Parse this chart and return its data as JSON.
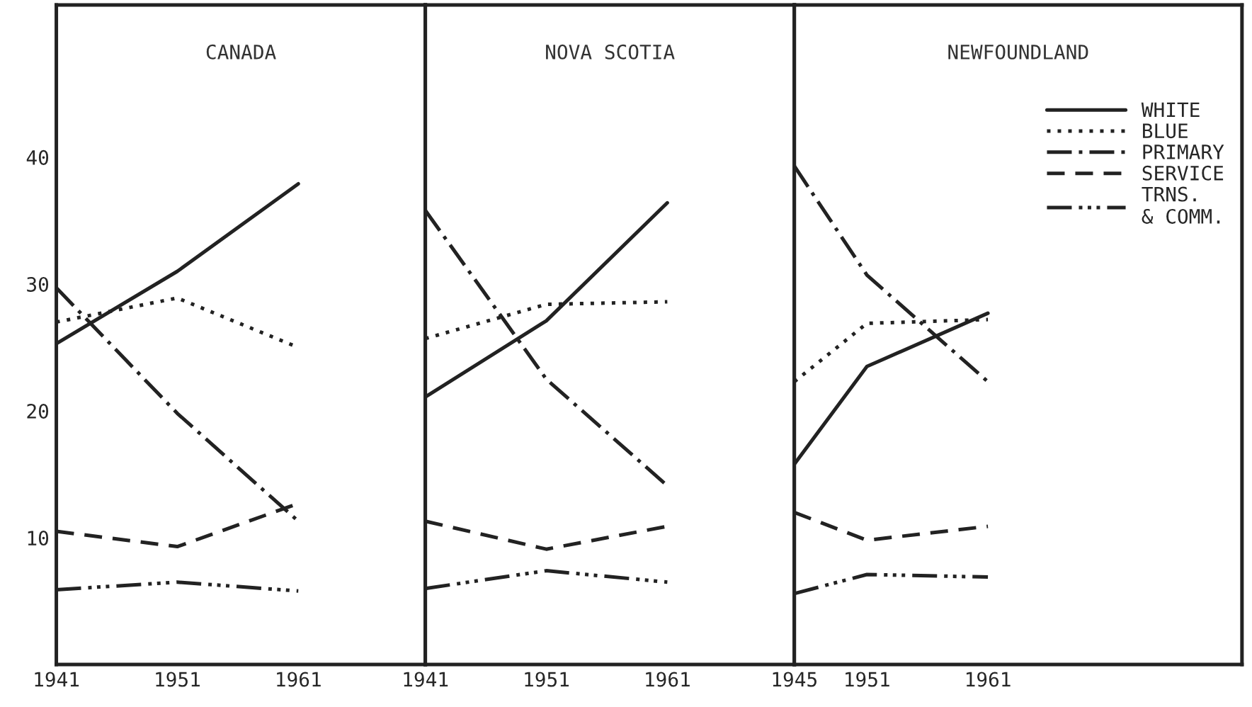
{
  "chart_data": [
    {
      "type": "line",
      "title": "CANADA",
      "x": [
        1941,
        1951,
        1961
      ],
      "xlim": [
        1941,
        1971.5
      ],
      "xticks": [
        1941,
        1951,
        1961
      ],
      "ylim": [
        0,
        52
      ],
      "yticks": [
        10,
        20,
        30,
        40
      ],
      "grid": false,
      "legend": false,
      "series": [
        {
          "color": "#222222",
          "line_style": "solid",
          "values": [
            25.3,
            31,
            37.9
          ]
        },
        {
          "color": "#222222",
          "line_style": "dotted",
          "values": [
            27.0,
            28.9,
            25.0
          ]
        },
        {
          "color": "#222222",
          "line_style": "dashdot",
          "values": [
            29.7,
            19.8,
            11.3
          ]
        },
        {
          "color": "#222222",
          "line_style": "dashed",
          "values": [
            10.5,
            9.3,
            12.7
          ]
        },
        {
          "color": "#222222",
          "line_style": "dashdotdot",
          "values": [
            5.9,
            6.5,
            5.8
          ]
        }
      ]
    },
    {
      "type": "line",
      "title": "NOVA SCOTIA",
      "x": [
        1941,
        1951,
        1961
      ],
      "xlim": [
        1941,
        1971.5
      ],
      "xticks": [
        1941,
        1951,
        1961
      ],
      "ylim": [
        0,
        52
      ],
      "yticks": [
        10,
        20,
        30,
        40
      ],
      "tick_labels": "x",
      "grid": false,
      "legend": false,
      "series": [
        {
          "color": "#222222",
          "line_style": "solid",
          "values": [
            21.1,
            27.1,
            36.4
          ]
        },
        {
          "color": "#222222",
          "line_style": "dotted",
          "values": [
            25.7,
            28.4,
            28.6
          ]
        },
        {
          "color": "#222222",
          "line_style": "dashdot",
          "values": [
            35.8,
            22.5,
            14.1
          ]
        },
        {
          "color": "#222222",
          "line_style": "dashed",
          "values": [
            11.3,
            9.1,
            10.9
          ]
        },
        {
          "color": "#222222",
          "line_style": "dashdotdot",
          "values": [
            6.0,
            7.4,
            6.5
          ]
        }
      ]
    },
    {
      "type": "line",
      "title": "NEWFOUNDLAND",
      "x": [
        1945,
        1951,
        1961
      ],
      "xlim": [
        1945,
        1982
      ],
      "xticks": [
        1945,
        1951,
        1961
      ],
      "ylim": [
        0,
        52
      ],
      "yticks": [
        10,
        20,
        30,
        40
      ],
      "tick_labels": "x",
      "grid": false,
      "legend": "top right",
      "series": [
        {
          "name": "WHITE",
          "color": "#222222",
          "line_style": "solid",
          "values": [
            15.8,
            23.5,
            27.7
          ]
        },
        {
          "name": "BLUE",
          "color": "#222222",
          "line_style": "dotted",
          "values": [
            22.3,
            26.9,
            27.2
          ]
        },
        {
          "name": "PRIMARY",
          "color": "#222222",
          "line_style": "dashdot",
          "values": [
            39.3,
            30.7,
            22.3
          ]
        },
        {
          "name": "SERVICE",
          "color": "#222222",
          "line_style": "dashed",
          "values": [
            12.0,
            9.8,
            10.9
          ]
        },
        {
          "name": "TRNS.\n& COMM.",
          "color": "#222222",
          "line_style": "dashdotdot",
          "values": [
            5.6,
            7.1,
            6.9
          ]
        }
      ]
    }
  ]
}
